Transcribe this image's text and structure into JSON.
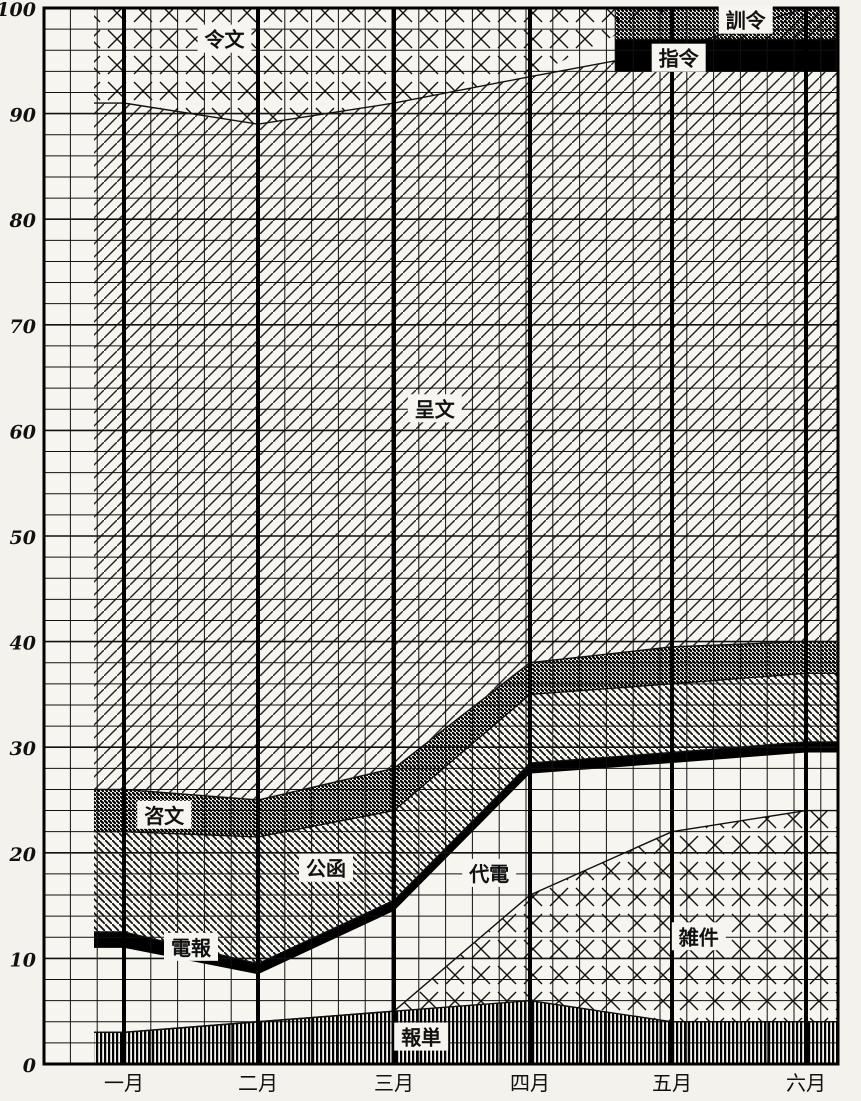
{
  "chart_data": {
    "type": "area",
    "title": "",
    "xlabel": "",
    "ylabel": "",
    "ylim": [
      0,
      100
    ],
    "yticks": [
      0,
      10,
      20,
      30,
      40,
      50,
      60,
      70,
      80,
      90,
      100
    ],
    "ytick_labels": [
      "0",
      "10",
      "20",
      "30",
      "40",
      "50",
      "60",
      "70",
      "80",
      "90",
      "100"
    ],
    "categories": [
      "一月",
      "二月",
      "三月",
      "四月",
      "五月",
      "六月"
    ],
    "grid": true,
    "bands": [
      {
        "label": "報単",
        "pattern": "vertical",
        "lower": [
          0,
          0,
          0,
          0,
          0,
          0
        ],
        "upper": [
          3,
          4,
          5,
          6,
          4,
          4
        ]
      },
      {
        "label": "雑件",
        "pattern": "crossx",
        "lower": [
          3,
          4,
          5,
          6,
          4,
          4
        ],
        "upper": [
          3,
          4,
          5,
          16,
          22,
          24
        ]
      },
      {
        "label": "電報",
        "pattern": "solid",
        "lower": [
          11,
          8.5,
          14.5,
          27.5,
          28.5,
          29.5
        ],
        "upper": [
          12.5,
          9.5,
          15.5,
          28.5,
          29.5,
          30.5
        ]
      },
      {
        "label": "公函",
        "pattern": "backslash",
        "lower": [
          12.5,
          9.5,
          15.5,
          28.5,
          29.5,
          30.5
        ],
        "upper": [
          22,
          21.5,
          24,
          35,
          36,
          37
        ]
      },
      {
        "label": "咨文",
        "pattern": "dense",
        "lower": [
          22,
          21.5,
          24,
          35,
          36,
          37
        ],
        "upper": [
          26,
          25,
          28,
          38,
          39.5,
          40
        ]
      },
      {
        "label": "呈文",
        "pattern": "slash",
        "lower": [
          26,
          25,
          28,
          38,
          39.5,
          40
        ],
        "upper": [
          91,
          89,
          91,
          93.5,
          96,
          100
        ]
      },
      {
        "label": "令文",
        "pattern": "crossx",
        "lower": [
          91,
          89,
          91,
          93.5,
          100,
          100
        ],
        "upper": [
          100,
          100,
          100,
          100,
          100,
          100
        ]
      }
    ],
    "top_bands": [
      {
        "label": "指令",
        "pattern": "solid",
        "x_from": 4.6,
        "x_to": 6,
        "lower": 94,
        "upper": 97
      },
      {
        "label": "訓令",
        "pattern": "dense",
        "x_from": 4.6,
        "x_to": 6,
        "lower": 97,
        "upper": 100
      }
    ],
    "labels": [
      {
        "text": "令文",
        "x": 1.75,
        "y": 97
      },
      {
        "text": "呈文",
        "x": 3.3,
        "y": 62
      },
      {
        "text": "咨文",
        "x": 1.3,
        "y": 23.5
      },
      {
        "text": "公函",
        "x": 2.5,
        "y": 18.5
      },
      {
        "text": "代電",
        "x": 3.7,
        "y": 18
      },
      {
        "text": "電報",
        "x": 1.5,
        "y": 11
      },
      {
        "text": "雑件",
        "x": 5.2,
        "y": 12
      },
      {
        "text": "報単",
        "x": 3.2,
        "y": 2.5
      },
      {
        "text": "訓令",
        "x": 5.55,
        "y": 98.8
      },
      {
        "text": "指令",
        "x": 5.05,
        "y": 95.2
      }
    ]
  }
}
